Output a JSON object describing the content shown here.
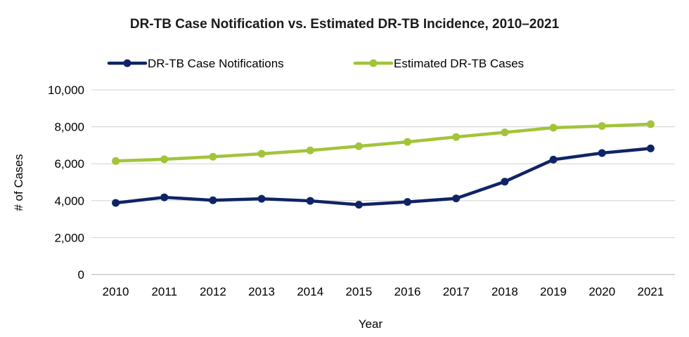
{
  "chart_data": {
    "type": "line",
    "title": "DR-TB Case Notification vs. Estimated DR-TB Incidence, 2010–2021",
    "xlabel": "Year",
    "ylabel": "# of Cases",
    "x": [
      "2010",
      "2011",
      "2012",
      "2013",
      "2014",
      "2015",
      "2016",
      "2017",
      "2018",
      "2019",
      "2020",
      "2021"
    ],
    "ylim": [
      0,
      10000
    ],
    "yticks": [
      0,
      2000,
      4000,
      6000,
      8000,
      10000
    ],
    "ytick_labels": [
      "0",
      "2,000",
      "4,000",
      "6,000",
      "8,000",
      "10,000"
    ],
    "grid": true,
    "legend_position": "top",
    "series": [
      {
        "name": "DR-TB Case Notifications",
        "color": "#0f2466",
        "values": [
          3880,
          4180,
          4020,
          4100,
          3990,
          3780,
          3930,
          4120,
          5030,
          6220,
          6580,
          6830
        ]
      },
      {
        "name": "Estimated DR-TB Cases",
        "color": "#a2c439",
        "values": [
          6150,
          6240,
          6380,
          6540,
          6720,
          6950,
          7180,
          7450,
          7700,
          7950,
          8040,
          8140
        ]
      }
    ]
  }
}
